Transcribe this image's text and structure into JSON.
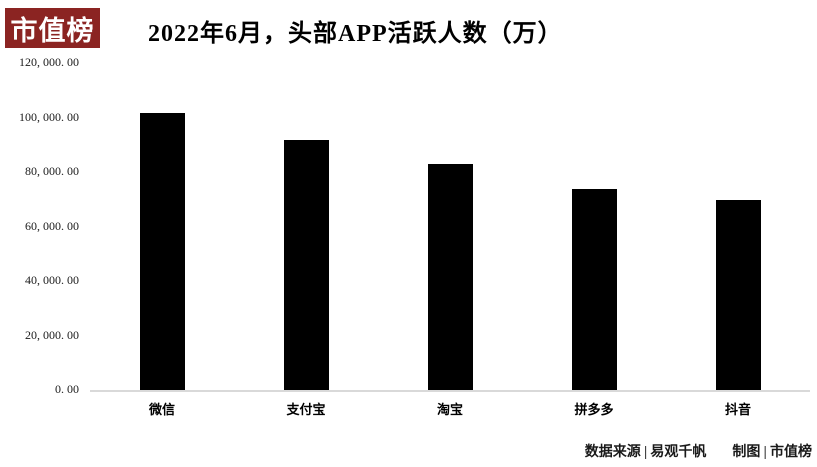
{
  "logo": {
    "text": "市值榜",
    "bg_color": "#8B2422",
    "text_color": "#ffffff"
  },
  "title": "2022年6月，头部APP活跃人数（万）",
  "chart_data": {
    "type": "bar",
    "title": "2022年6月，头部APP活跃人数（万）",
    "categories": [
      "微信",
      "支付宝",
      "淘宝",
      "拼多多",
      "抖音"
    ],
    "values": [
      101800,
      91700,
      82900,
      73600,
      69800
    ],
    "xlabel": "",
    "ylabel": "",
    "ylim": [
      0,
      120000
    ],
    "ytick_values": [
      0,
      20000,
      40000,
      60000,
      80000,
      100000,
      120000
    ],
    "ytick_labels": [
      "0. 00",
      "20, 000. 00",
      "40, 000. 00",
      "60, 000. 00",
      "80, 000. 00",
      "100, 000. 00",
      "120, 000. 00"
    ],
    "bar_color": "#000000",
    "axis_line_color": "#d9d9d9",
    "grid": false,
    "legend": false
  },
  "footer": {
    "source_label": "数据来源",
    "source_value": "易观千帆",
    "credit_label": "制图",
    "credit_value": "市值榜",
    "separator": "|"
  }
}
